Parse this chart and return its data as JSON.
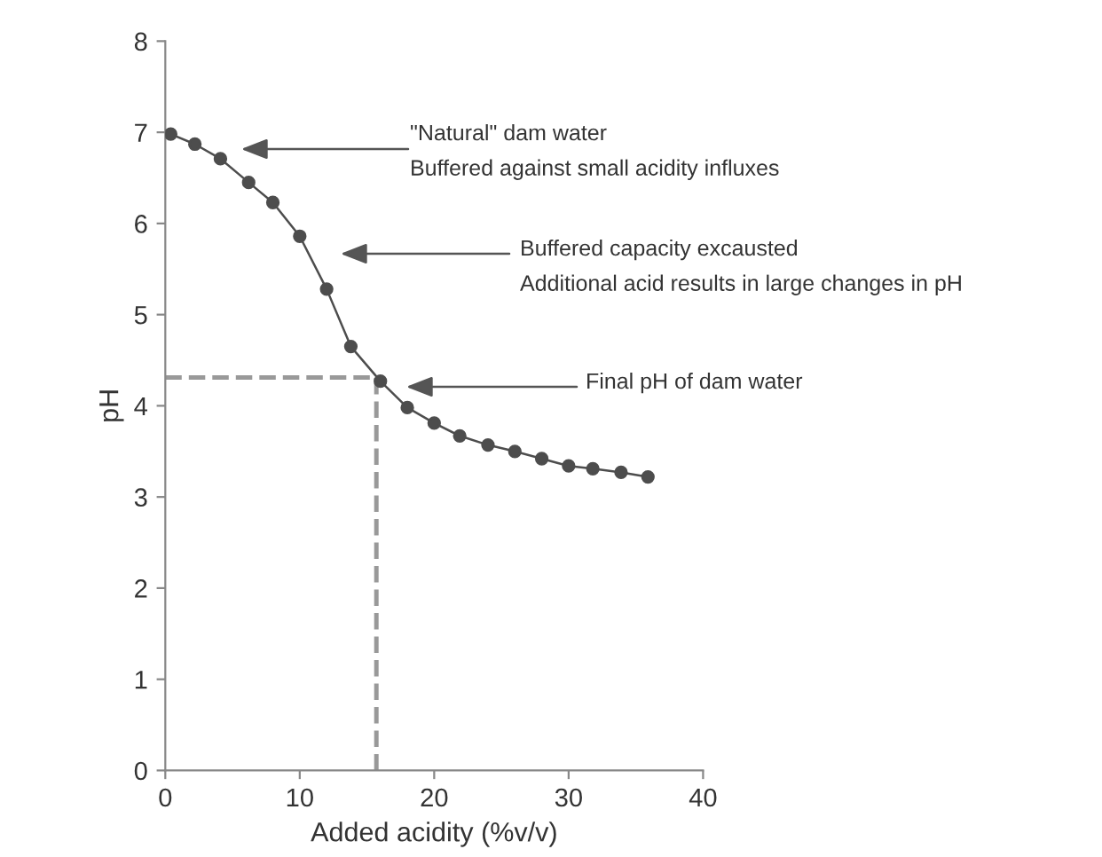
{
  "chart_data": {
    "type": "line",
    "xlabel": "Added acidity (%v/v)",
    "ylabel": "pH",
    "x": [
      0.4,
      2.2,
      4.1,
      6.2,
      8.0,
      10.0,
      12.0,
      13.8,
      16.0,
      18.0,
      20.0,
      21.9,
      24.0,
      26.0,
      28.0,
      30.0,
      31.8,
      33.9,
      35.9
    ],
    "series": [
      {
        "color": "#4d4d4d",
        "values": [
          6.98,
          6.87,
          6.71,
          6.45,
          6.23,
          5.86,
          5.28,
          4.65,
          4.27,
          3.98,
          3.81,
          3.67,
          3.57,
          3.5,
          3.42,
          3.34,
          3.31,
          3.27,
          3.22
        ]
      }
    ],
    "marker": "circle",
    "line_style": "solid",
    "grid": false,
    "xlim": [
      0,
      40
    ],
    "xticks": [
      0,
      10,
      20,
      30,
      40
    ],
    "ylim": [
      0,
      8
    ],
    "yticks": [
      0,
      1,
      2,
      3,
      4,
      5,
      6,
      7,
      8
    ],
    "ref_lines": [
      {
        "axis": "y",
        "value": 4.31,
        "color": "#999999",
        "line_style": "dashed"
      },
      {
        "axis": "x",
        "value": 15.7,
        "color": "#999999",
        "line_style": "dashed"
      }
    ],
    "annotations": [
      "\"Natural\" dam water\nBuffered against small acidity influxes",
      "Buffered capacity excausted\nAdditional acid results in large changes in pH",
      "Final pH of dam water"
    ]
  }
}
